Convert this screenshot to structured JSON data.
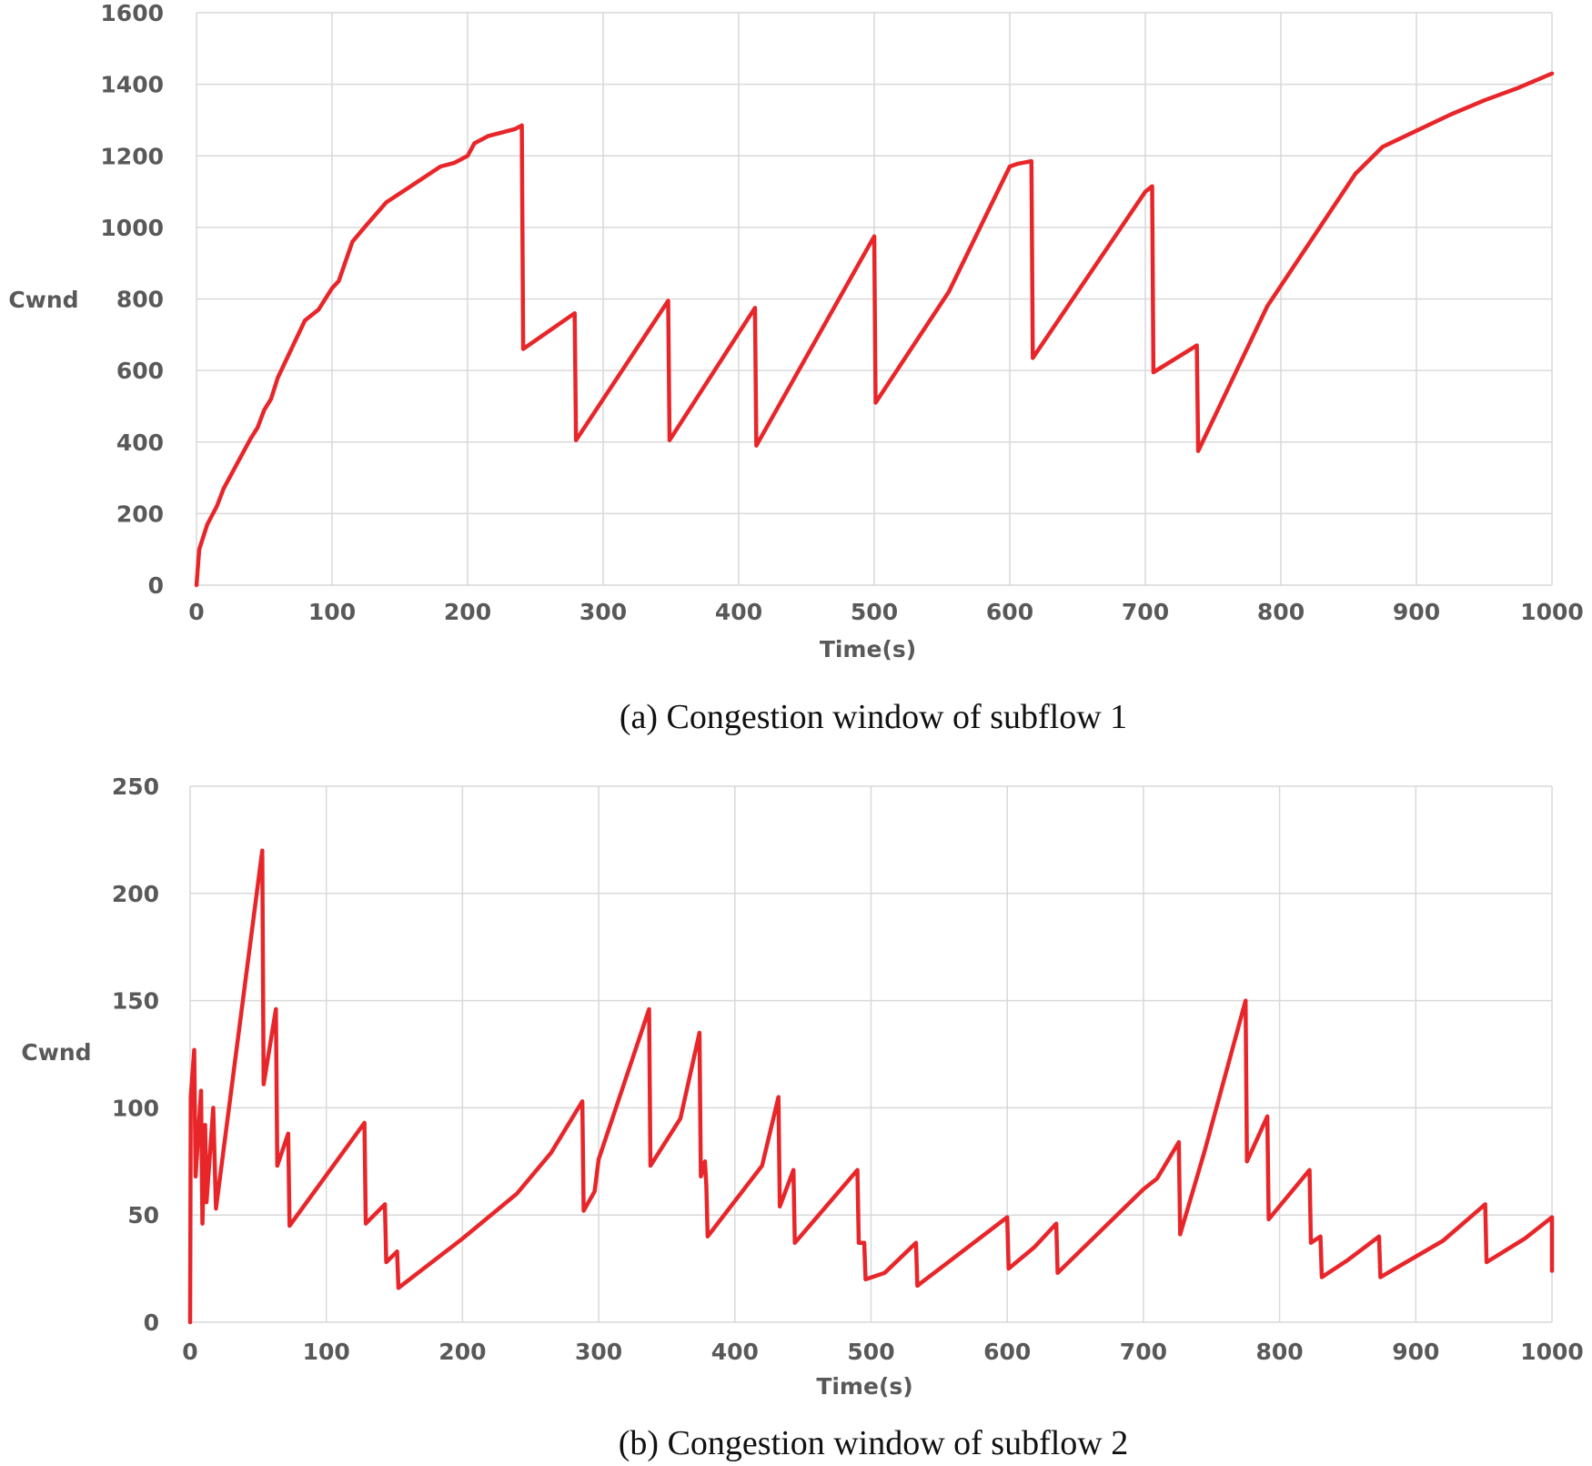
{
  "chart_data": [
    {
      "type": "line",
      "id": "subflow1",
      "title": "",
      "caption": "(a) Congestion window of subflow 1",
      "xlabel": "Time(s)",
      "ylabel": "Cwnd",
      "xlim": [
        0,
        1000
      ],
      "ylim": [
        0,
        1600
      ],
      "xticks": [
        0,
        100,
        200,
        300,
        400,
        500,
        600,
        700,
        800,
        900,
        1000
      ],
      "yticks": [
        0,
        200,
        400,
        600,
        800,
        1000,
        1200,
        1400,
        1600
      ],
      "grid": "vertical-and-horizontal",
      "line_color": "#e8262a",
      "series": [
        {
          "name": "Cwnd",
          "x": [
            0,
            2,
            8,
            15,
            20,
            30,
            40,
            45,
            50,
            55,
            60,
            70,
            80,
            90,
            100,
            105,
            115,
            125,
            140,
            160,
            180,
            190,
            200,
            205,
            215,
            225,
            235,
            240,
            241,
            279,
            280,
            348,
            349,
            412,
            413,
            500,
            501,
            555,
            600,
            606,
            616,
            617,
            700,
            705,
            706,
            738,
            739,
            790,
            855,
            875,
            900,
            925,
            950,
            975,
            1000
          ],
          "y": [
            0,
            100,
            170,
            220,
            270,
            340,
            410,
            440,
            490,
            520,
            580,
            660,
            740,
            770,
            830,
            850,
            960,
            1005,
            1070,
            1120,
            1170,
            1180,
            1200,
            1235,
            1255,
            1265,
            1275,
            1285,
            660,
            760,
            405,
            795,
            405,
            775,
            390,
            975,
            510,
            820,
            1170,
            1178,
            1185,
            635,
            1100,
            1115,
            595,
            670,
            375,
            780,
            1150,
            1225,
            1270,
            1315,
            1355,
            1390,
            1430
          ]
        }
      ]
    },
    {
      "type": "line",
      "id": "subflow2",
      "title": "",
      "caption": "(b) Congestion window of subflow 2",
      "xlabel": "Time(s)",
      "ylabel": "Cwnd",
      "xlim": [
        0,
        1000
      ],
      "ylim": [
        0,
        250
      ],
      "xticks": [
        0,
        100,
        200,
        300,
        400,
        500,
        600,
        700,
        800,
        900,
        1000
      ],
      "yticks": [
        0,
        50,
        100,
        150,
        200,
        250
      ],
      "grid": "vertical-and-horizontal",
      "line_color": "#e8262a",
      "series": [
        {
          "name": "Cwnd",
          "x": [
            0,
            0.5,
            3,
            4,
            8,
            9,
            11,
            12,
            17,
            19,
            53,
            54,
            63,
            64,
            72,
            73,
            128,
            129,
            143,
            144,
            152,
            153,
            200,
            240,
            265,
            288,
            289,
            297,
            300,
            337,
            338,
            360,
            374,
            375,
            378,
            379,
            380,
            420,
            432,
            433,
            443,
            444,
            490,
            491,
            495,
            496,
            510,
            533,
            534,
            600,
            601,
            620,
            636,
            637,
            700,
            710,
            726,
            727,
            745,
            775,
            776,
            791,
            792,
            822,
            823,
            830,
            831,
            850,
            873,
            874,
            920,
            951,
            952,
            980,
            1000,
            1001
          ],
          "y": [
            0,
            105,
            127,
            68,
            108,
            46,
            92,
            56,
            100,
            53,
            220,
            111,
            146,
            73,
            88,
            45,
            93,
            46,
            55,
            28,
            33,
            16,
            39,
            60,
            79,
            103,
            52,
            61,
            76,
            146,
            73,
            95,
            135,
            68,
            75,
            64,
            40,
            73,
            105,
            54,
            71,
            37,
            71,
            37,
            37,
            20,
            23,
            37,
            17,
            49,
            25,
            35,
            46,
            23,
            62,
            67,
            84,
            41,
            80,
            150,
            75,
            96,
            48,
            71,
            37,
            40,
            21,
            29,
            40,
            21,
            38,
            55,
            28,
            39,
            49,
            24
          ]
        }
      ]
    }
  ]
}
